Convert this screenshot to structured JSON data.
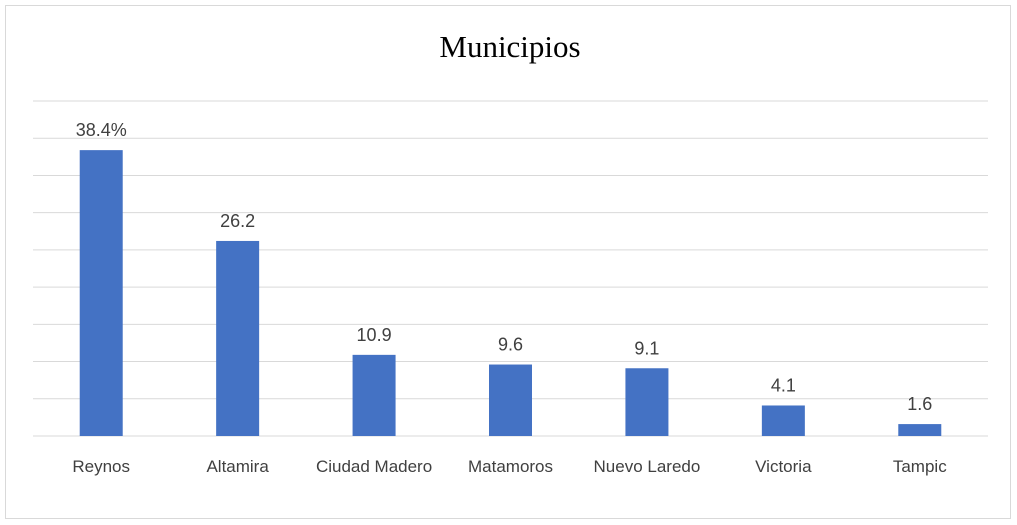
{
  "chart_data": {
    "type": "bar",
    "title": "Municipios",
    "categories": [
      "Reynos",
      "Altamira",
      "Ciudad Madero",
      "Matamoros",
      "Nuevo Laredo",
      "Victoria",
      "Tampic"
    ],
    "values": [
      38.4,
      26.2,
      10.9,
      9.6,
      9.1,
      4.1,
      1.6
    ],
    "value_labels": [
      "38.4%",
      "26.2",
      "10.9",
      "9.6",
      "9.1",
      "4.1",
      "1.6"
    ],
    "color": "#4472c4",
    "ylim": [
      0,
      45
    ],
    "yticks": [
      0,
      5,
      10,
      15,
      20,
      25,
      30,
      35,
      40,
      45
    ],
    "grid": true
  }
}
